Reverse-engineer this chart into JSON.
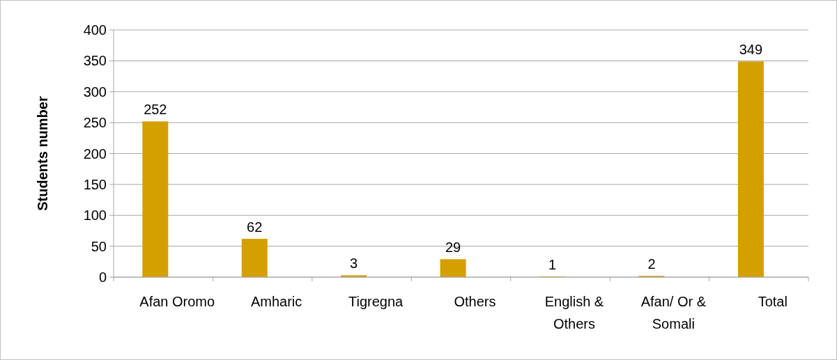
{
  "chart_data": {
    "type": "bar",
    "ylabel": "Students number",
    "categories": [
      "Afan Oromo",
      "Amharic",
      "Tigregna",
      "Others",
      "English & Others",
      "Afan/ Or & Somali",
      "Total"
    ],
    "values": [
      252,
      62,
      3,
      29,
      1,
      2,
      349
    ],
    "color": "#d4a000",
    "ylim": [
      0,
      400
    ],
    "yticks": [
      0,
      50,
      100,
      150,
      200,
      250,
      300,
      350,
      400
    ],
    "grid": "y",
    "data_labels": true
  }
}
